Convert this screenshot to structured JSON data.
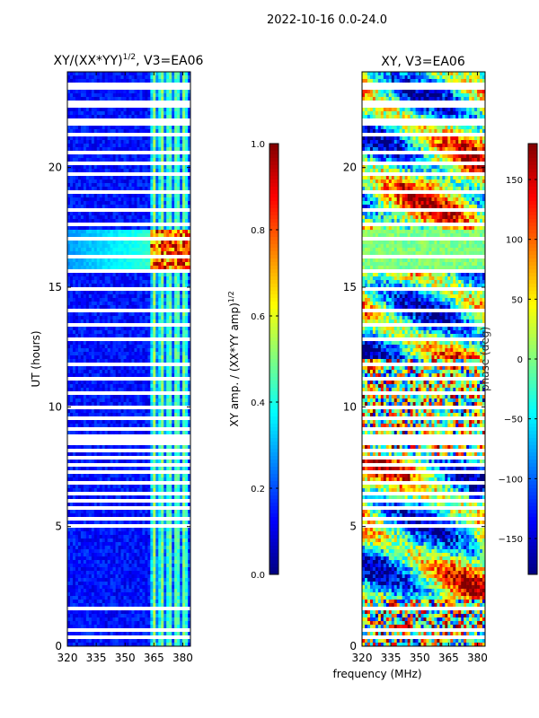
{
  "figure_title": "2022-10-16 0.0-24.0",
  "shared_xlabel": "frequency (MHz)",
  "colors": {
    "jet_stops": [
      "#00007f",
      "#0000ff",
      "#007fff",
      "#00ffff",
      "#7fff7f",
      "#ffff00",
      "#ff7f00",
      "#ff0000",
      "#7f0000"
    ]
  },
  "chart_data": [
    {
      "type": "heatmap",
      "title_main": "XY/(XX*YY)",
      "title_sup": "1/2",
      "title_rest": ", V3=EA06",
      "xlabel": "",
      "ylabel": "UT (hours)",
      "xlim": [
        320,
        384
      ],
      "ylim": [
        0,
        24
      ],
      "xticks": [
        "320",
        "335",
        "350",
        "365",
        "380"
      ],
      "yticks": [
        "0",
        "5",
        "10",
        "15",
        "20"
      ],
      "colorbar": {
        "label": "XY amp. / (XX*YY amp)",
        "label_sup": "1/2",
        "range": [
          0.0,
          1.0
        ],
        "ticks": [
          "0.0",
          "0.2",
          "0.4",
          "0.6",
          "0.8",
          "1.0"
        ]
      }
    },
    {
      "type": "heatmap",
      "title": "XY, V3=EA06",
      "xlabel": "frequency (MHz)",
      "ylabel": "",
      "xlim": [
        320,
        384
      ],
      "ylim": [
        0,
        24
      ],
      "xticks": [
        "320",
        "335",
        "350",
        "365",
        "380"
      ],
      "yticks": [
        "0",
        "5",
        "10",
        "15",
        "20"
      ],
      "colorbar": {
        "label": "phase (deg)",
        "range": [
          -180,
          180
        ],
        "ticks": [
          "−150",
          "−100",
          "−50",
          "0",
          "50",
          "100",
          "150"
        ]
      }
    }
  ]
}
